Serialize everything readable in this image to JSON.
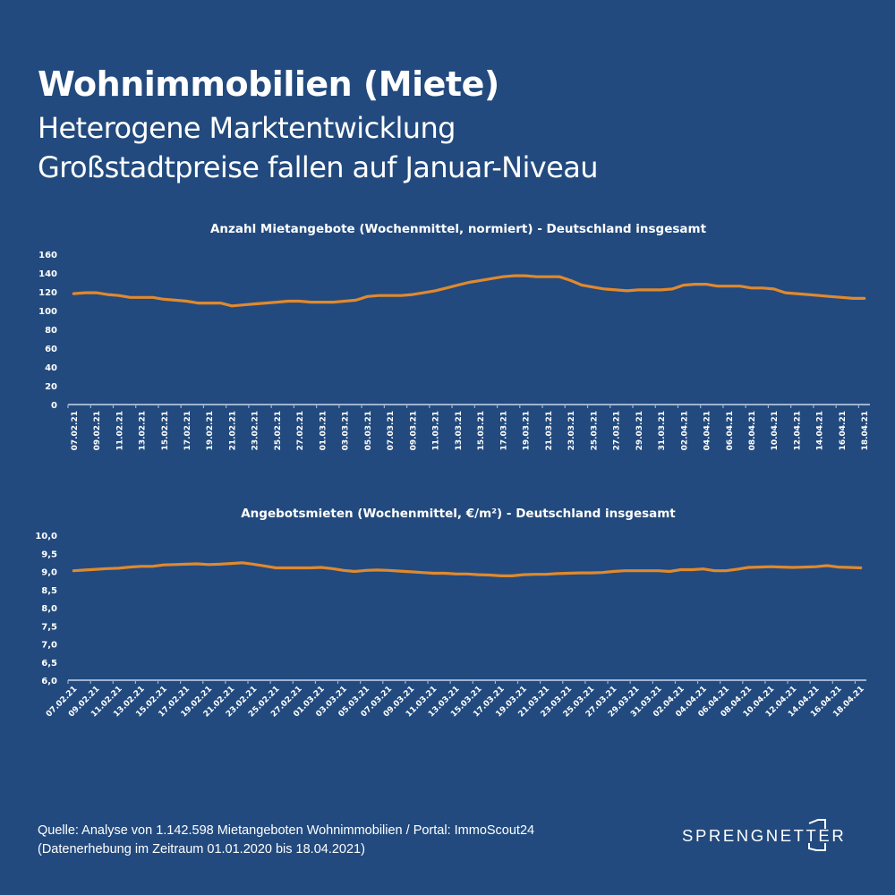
{
  "header": {
    "title": "Wohnimmobilien (Miete)",
    "subtitle_line1": "Heterogene Marktentwicklung",
    "subtitle_line2": "Großstadtpreise fallen auf Januar-Niveau"
  },
  "colors": {
    "background": "#224a7e",
    "line": "#e0892e",
    "axis": "#9fb3d1",
    "text": "#ffffff"
  },
  "chart_data": [
    {
      "type": "line",
      "title": "Anzahl Mietangebote (Wochenmittel, normiert) - Deutschland insgesamt",
      "xlabel": "",
      "ylabel": "",
      "ylim": [
        0,
        160
      ],
      "yticks": [
        "0",
        "20",
        "40",
        "60",
        "80",
        "100",
        "120",
        "140",
        "160"
      ],
      "ytick_values": [
        0,
        20,
        40,
        60,
        80,
        100,
        120,
        140,
        160
      ],
      "grid": false,
      "x_start": "07.02.21",
      "x_end": "18.04.21",
      "xtick_labels": [
        "07.02.21",
        "09.02.21",
        "11.02.21",
        "13.02.21",
        "15.02.21",
        "17.02.21",
        "19.02.21",
        "21.02.21",
        "23.02.21",
        "25.02.21",
        "27.02.21",
        "01.03.21",
        "03.03.21",
        "05.03.21",
        "07.03.21",
        "09.03.21",
        "11.03.21",
        "13.03.21",
        "15.03.21",
        "17.03.21",
        "19.03.21",
        "21.03.21",
        "23.03.21",
        "25.03.21",
        "27.03.21",
        "29.03.21",
        "31.03.21",
        "02.04.21",
        "04.04.21",
        "06.04.21",
        "08.04.21",
        "10.04.21",
        "12.04.21",
        "14.04.21",
        "16.04.21",
        "18.04.21"
      ],
      "series": [
        {
          "name": "Anzahl Mietangebote",
          "values": [
            118,
            119,
            119,
            117,
            116,
            114,
            114,
            114,
            112,
            111,
            110,
            108,
            108,
            108,
            105,
            106,
            107,
            108,
            109,
            110,
            110,
            109,
            109,
            109,
            110,
            111,
            115,
            116,
            116,
            116,
            117,
            119,
            121,
            124,
            127,
            130,
            132,
            134,
            136,
            137,
            137,
            136,
            136,
            136,
            132,
            127,
            125,
            123,
            122,
            121,
            122,
            122,
            122,
            123,
            127,
            128,
            128,
            126,
            126,
            126,
            124,
            124,
            123,
            119,
            118,
            117,
            116,
            115,
            114,
            113,
            113
          ]
        }
      ]
    },
    {
      "type": "line",
      "title": "Angebotsmieten (Wochenmittel, €/m²) - Deutschland insgesamt",
      "xlabel": "",
      "ylabel": "",
      "ylim": [
        6.0,
        10.0
      ],
      "yticks": [
        "6,0",
        "6,5",
        "7,0",
        "7,5",
        "8,0",
        "8,5",
        "9,0",
        "9,5",
        "10,0"
      ],
      "ytick_values": [
        6.0,
        6.5,
        7.0,
        7.5,
        8.0,
        8.5,
        9.0,
        9.5,
        10.0
      ],
      "grid": false,
      "x_start": "07.02.21",
      "x_end": "18.04.21",
      "xtick_labels": [
        "07.02.21",
        "09.02.21",
        "11.02.21",
        "13.02.21",
        "15.02.21",
        "17.02.21",
        "19.02.21",
        "21.02.21",
        "23.02.21",
        "25.02.21",
        "27.02.21",
        "01.03.21",
        "03.03.21",
        "05.03.21",
        "07.03.21",
        "09.03.21",
        "11.03.21",
        "13.03.21",
        "15.03.21",
        "17.03.21",
        "19.03.21",
        "21.03.21",
        "23.03.21",
        "25.03.21",
        "27.03.21",
        "29.03.21",
        "31.03.21",
        "02.04.21",
        "04.04.21",
        "06.04.21",
        "08.04.21",
        "10.04.21",
        "12.04.21",
        "14.04.21",
        "16.04.21",
        "18.04.21"
      ],
      "series": [
        {
          "name": "Angebotsmieten",
          "values": [
            9.02,
            9.04,
            9.06,
            9.08,
            9.09,
            9.12,
            9.14,
            9.14,
            9.18,
            9.19,
            9.2,
            9.21,
            9.19,
            9.2,
            9.22,
            9.24,
            9.2,
            9.15,
            9.1,
            9.1,
            9.1,
            9.1,
            9.11,
            9.08,
            9.03,
            9.0,
            9.03,
            9.04,
            9.03,
            9.01,
            8.99,
            8.97,
            8.95,
            8.95,
            8.93,
            8.93,
            8.91,
            8.9,
            8.88,
            8.88,
            8.91,
            8.92,
            8.92,
            8.94,
            8.95,
            8.96,
            8.96,
            8.97,
            9.0,
            9.02,
            9.02,
            9.02,
            9.02,
            9.0,
            9.05,
            9.05,
            9.07,
            9.02,
            9.02,
            9.06,
            9.11,
            9.12,
            9.13,
            9.12,
            9.11,
            9.12,
            9.13,
            9.16,
            9.12,
            9.11,
            9.1
          ]
        }
      ]
    }
  ],
  "footer": {
    "source_line1": "Quelle: Analyse von 1.142.598 Mietangeboten Wohnimmobilien / Portal: ImmoScout24",
    "source_line2": "(Datenerhebung im Zeitraum 01.01.2020 bis  18.04.2021)"
  },
  "logo": {
    "text": "SPRENGNETTER"
  }
}
